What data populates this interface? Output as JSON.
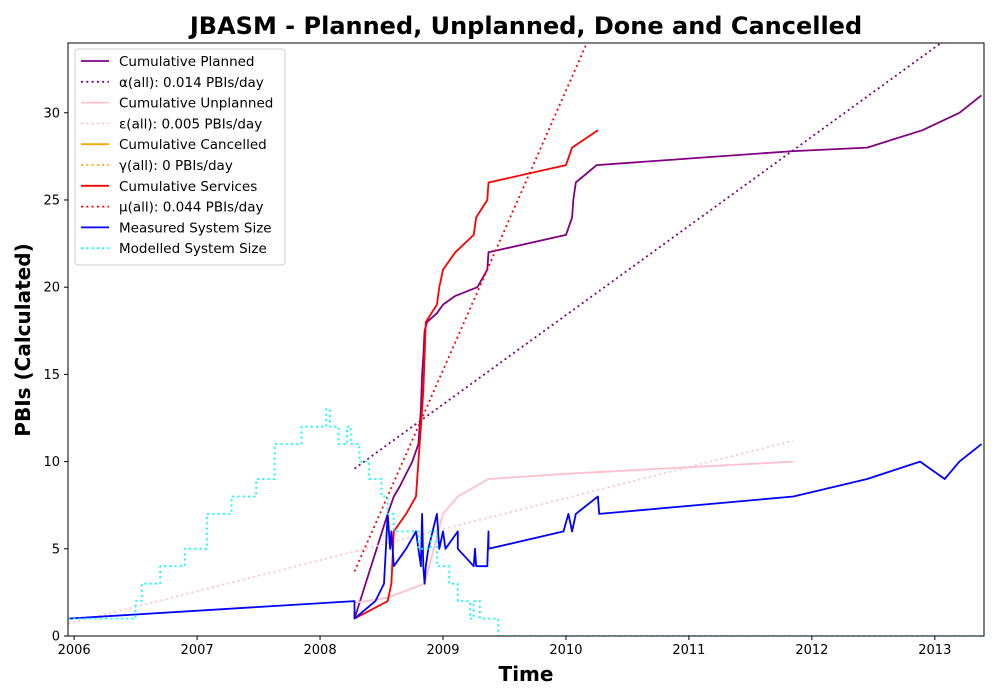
{
  "chart_data": {
    "type": "line",
    "title": "JBASM - Planned, Unplanned, Done  and Cancelled",
    "xlabel": "Time",
    "ylabel": "PBIs (Calculated)",
    "xlim": [
      2005.95,
      2013.4
    ],
    "ylim": [
      0,
      34
    ],
    "xticks": [
      2006,
      2007,
      2008,
      2009,
      2010,
      2011,
      2012,
      2013
    ],
    "yticks": [
      0,
      5,
      10,
      15,
      20,
      25,
      30
    ],
    "legend_position": "top-left",
    "grid": false,
    "series": [
      {
        "name": "Cumulative Planned",
        "color": "#800080",
        "style": "solid",
        "points": [
          [
            2008.28,
            1
          ],
          [
            2008.55,
            7
          ],
          [
            2008.6,
            8
          ],
          [
            2008.65,
            8.6
          ],
          [
            2008.75,
            10
          ],
          [
            2008.8,
            11
          ],
          [
            2008.82,
            13
          ],
          [
            2008.83,
            15
          ],
          [
            2008.84,
            16
          ],
          [
            2008.85,
            17.5
          ],
          [
            2008.87,
            18
          ],
          [
            2008.95,
            18.5
          ],
          [
            2009.0,
            19
          ],
          [
            2009.1,
            19.5
          ],
          [
            2009.28,
            20
          ],
          [
            2009.36,
            21
          ],
          [
            2009.37,
            22
          ],
          [
            2010.0,
            23
          ],
          [
            2010.05,
            24
          ],
          [
            2010.06,
            25
          ],
          [
            2010.08,
            26
          ],
          [
            2010.25,
            27
          ],
          [
            2011.85,
            27.8
          ],
          [
            2012.45,
            28
          ],
          [
            2012.9,
            29
          ],
          [
            2013.2,
            30
          ],
          [
            2013.38,
            31
          ]
        ]
      },
      {
        "name": "α(all): 0.014 PBIs/day",
        "color": "#800080",
        "style": "dotted",
        "points": [
          [
            2008.28,
            9.6
          ],
          [
            2013.05,
            34
          ]
        ]
      },
      {
        "name": "Cumulative Unplanned",
        "color": "#ffc0cb",
        "style": "solid",
        "points": [
          [
            2008.28,
            1.9
          ],
          [
            2008.55,
            2.2
          ],
          [
            2008.85,
            3
          ],
          [
            2009.0,
            7
          ],
          [
            2009.12,
            8
          ],
          [
            2009.37,
            9
          ],
          [
            2010.0,
            9.3
          ],
          [
            2011.85,
            10
          ]
        ]
      },
      {
        "name": "ε(all): 0.005 PBIs/day",
        "color": "#ffc0cb",
        "style": "dotted",
        "points": [
          [
            2005.95,
            0.7
          ],
          [
            2011.85,
            11.2
          ]
        ]
      },
      {
        "name": "Cumulative Cancelled",
        "color": "#ffa500",
        "style": "solid",
        "points": []
      },
      {
        "name": "γ(all): 0 PBIs/day",
        "color": "#ffa500",
        "style": "dotted",
        "points": []
      },
      {
        "name": "Cumulative Services",
        "color": "#ff0000",
        "style": "solid",
        "points": [
          [
            2008.28,
            1
          ],
          [
            2008.55,
            2
          ],
          [
            2008.58,
            3
          ],
          [
            2008.6,
            6
          ],
          [
            2008.7,
            7
          ],
          [
            2008.78,
            8
          ],
          [
            2008.8,
            10
          ],
          [
            2008.82,
            12
          ],
          [
            2008.84,
            14
          ],
          [
            2008.86,
            18
          ],
          [
            2008.95,
            19
          ],
          [
            2008.97,
            20
          ],
          [
            2009.0,
            21
          ],
          [
            2009.1,
            22
          ],
          [
            2009.25,
            23
          ],
          [
            2009.27,
            24
          ],
          [
            2009.36,
            25
          ],
          [
            2009.37,
            26
          ],
          [
            2010.0,
            27
          ],
          [
            2010.05,
            28
          ],
          [
            2010.26,
            29
          ]
        ]
      },
      {
        "name": "μ(all): 0.044 PBIs/day",
        "color": "#ff0000",
        "style": "dotted",
        "points": [
          [
            2008.28,
            3.7
          ],
          [
            2010.17,
            34
          ]
        ]
      },
      {
        "name": "Measured System Size",
        "color": "#0000ff",
        "style": "solid",
        "points": [
          [
            2005.95,
            1
          ],
          [
            2008.28,
            2
          ],
          [
            2008.28,
            1
          ],
          [
            2008.45,
            2
          ],
          [
            2008.52,
            3
          ],
          [
            2008.55,
            7
          ],
          [
            2008.57,
            5
          ],
          [
            2008.58,
            6
          ],
          [
            2008.6,
            4
          ],
          [
            2008.7,
            5
          ],
          [
            2008.78,
            6
          ],
          [
            2008.8,
            5
          ],
          [
            2008.82,
            4
          ],
          [
            2008.83,
            7
          ],
          [
            2008.84,
            4
          ],
          [
            2008.85,
            3
          ],
          [
            2008.86,
            4
          ],
          [
            2008.88,
            5
          ],
          [
            2008.95,
            7
          ],
          [
            2008.97,
            5
          ],
          [
            2009.0,
            6
          ],
          [
            2009.02,
            5
          ],
          [
            2009.12,
            6
          ],
          [
            2009.12,
            5
          ],
          [
            2009.25,
            4
          ],
          [
            2009.26,
            5
          ],
          [
            2009.27,
            4
          ],
          [
            2009.36,
            4
          ],
          [
            2009.37,
            6
          ],
          [
            2009.37,
            5
          ],
          [
            2009.98,
            6
          ],
          [
            2010.02,
            7
          ],
          [
            2010.05,
            6
          ],
          [
            2010.08,
            7
          ],
          [
            2010.26,
            8
          ],
          [
            2010.27,
            7
          ],
          [
            2011.85,
            8
          ],
          [
            2012.45,
            9
          ],
          [
            2012.88,
            10
          ],
          [
            2013.08,
            9
          ],
          [
            2013.2,
            10
          ],
          [
            2013.38,
            11
          ]
        ]
      },
      {
        "name": "Modelled System Size",
        "color": "#00ffff",
        "style": "dotted",
        "points": [
          [
            2005.95,
            1
          ],
          [
            2006.5,
            1
          ],
          [
            2006.5,
            2
          ],
          [
            2006.55,
            2
          ],
          [
            2006.55,
            3
          ],
          [
            2006.7,
            3
          ],
          [
            2006.7,
            4
          ],
          [
            2006.9,
            4
          ],
          [
            2006.9,
            5
          ],
          [
            2007.08,
            5
          ],
          [
            2007.08,
            7
          ],
          [
            2007.28,
            7
          ],
          [
            2007.28,
            8
          ],
          [
            2007.48,
            8
          ],
          [
            2007.48,
            9
          ],
          [
            2007.63,
            9
          ],
          [
            2007.63,
            11
          ],
          [
            2007.85,
            11
          ],
          [
            2007.85,
            12
          ],
          [
            2008.05,
            12
          ],
          [
            2008.05,
            13
          ],
          [
            2008.08,
            13
          ],
          [
            2008.08,
            12
          ],
          [
            2008.15,
            12
          ],
          [
            2008.15,
            11
          ],
          [
            2008.22,
            11
          ],
          [
            2008.22,
            12
          ],
          [
            2008.25,
            12
          ],
          [
            2008.25,
            11
          ],
          [
            2008.32,
            11
          ],
          [
            2008.32,
            10
          ],
          [
            2008.4,
            10
          ],
          [
            2008.4,
            9
          ],
          [
            2008.5,
            9
          ],
          [
            2008.5,
            8
          ],
          [
            2008.55,
            8
          ],
          [
            2008.55,
            7
          ],
          [
            2008.6,
            7
          ],
          [
            2008.6,
            6
          ],
          [
            2008.8,
            6
          ],
          [
            2008.8,
            5
          ],
          [
            2008.9,
            5
          ],
          [
            2008.9,
            6
          ],
          [
            2008.95,
            6
          ],
          [
            2008.95,
            4
          ],
          [
            2009.05,
            4
          ],
          [
            2009.05,
            3
          ],
          [
            2009.12,
            3
          ],
          [
            2009.12,
            2
          ],
          [
            2009.22,
            2
          ],
          [
            2009.22,
            1
          ],
          [
            2009.25,
            1
          ],
          [
            2009.25,
            2
          ],
          [
            2009.3,
            2
          ],
          [
            2009.3,
            1
          ],
          [
            2009.38,
            1
          ],
          [
            2009.38,
            1
          ],
          [
            2009.45,
            1
          ],
          [
            2009.45,
            0
          ],
          [
            2013.4,
            0
          ]
        ]
      }
    ]
  }
}
